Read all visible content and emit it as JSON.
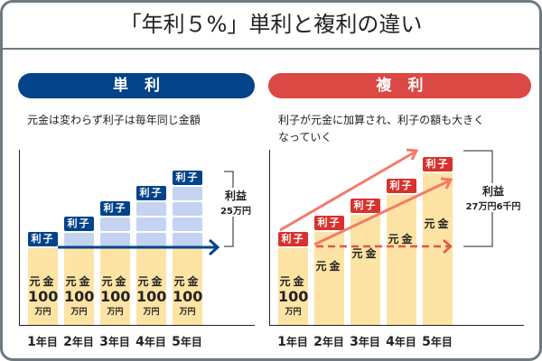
{
  "title": "「年利５%」単利と複利の違い",
  "colors": {
    "simple": "#03438a",
    "compound": "#dc4844",
    "principal": "#fde4a4",
    "interest_block": "#c4d3f0",
    "arrow_compound": "#f57a6a",
    "frame": "#6d7b80"
  },
  "simple": {
    "header": "単利",
    "description": "元金は変わらず利子は毎年同じ金額",
    "principal_label": "元金",
    "principal_amount": "100",
    "principal_unit": "万円",
    "interest_label": "利子",
    "gain_label": "利益",
    "gain_value": "25万円"
  },
  "compound": {
    "header": "複利",
    "description_line1": "利子が元金に加算され、利子の額も大きく",
    "description_line2": "なっていく",
    "principal_label": "元金",
    "principal_amount": "100",
    "principal_unit": "万円",
    "interest_label": "利子",
    "gain_label": "利益",
    "gain_value": "27万円6千円"
  },
  "years": [
    {
      "num": "1",
      "suffix": "年目"
    },
    {
      "num": "2",
      "suffix": "年目"
    },
    {
      "num": "3",
      "suffix": "年目"
    },
    {
      "num": "4",
      "suffix": "年目"
    },
    {
      "num": "5",
      "suffix": "年目"
    }
  ]
}
